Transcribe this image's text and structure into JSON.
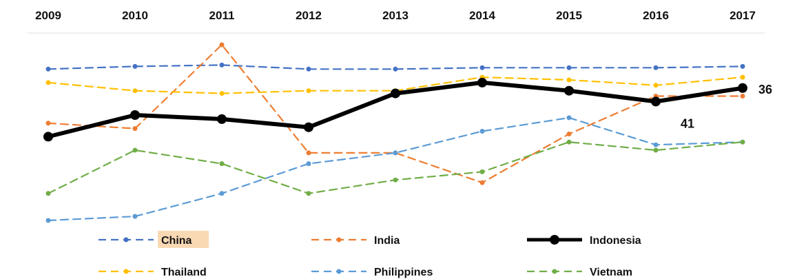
{
  "chart_data": {
    "type": "line",
    "title": "",
    "xlabel": "",
    "ylabel": "",
    "x": [
      "2009",
      "2010",
      "2011",
      "2012",
      "2013",
      "2014",
      "2015",
      "2016",
      "2017"
    ],
    "y_axis": "inverted, unlabeled (lower value plotted higher)",
    "ylim": [
      85,
      20
    ],
    "grid": false,
    "legend": "bottom",
    "series": [
      {
        "name": "China",
        "color": "#4472C4",
        "style": "dashed",
        "values": [
          29,
          28,
          27.5,
          29,
          29,
          28.5,
          28.5,
          28.5,
          28
        ]
      },
      {
        "name": "India",
        "color": "#ED7D31",
        "style": "dashed",
        "values": [
          49,
          51,
          20,
          60,
          60,
          71,
          53,
          39,
          39
        ]
      },
      {
        "name": "Indonesia",
        "color": "#000000",
        "style": "solid",
        "values": [
          54,
          46,
          47.5,
          50.5,
          38,
          34,
          37,
          41,
          36
        ]
      },
      {
        "name": "Thailand",
        "color": "#FFC000",
        "style": "dashed",
        "values": [
          34,
          37,
          38,
          37,
          37,
          32,
          33,
          35,
          32
        ]
      },
      {
        "name": "Philippines",
        "color": "#5B9BD5",
        "style": "dashed",
        "values": [
          85,
          83.5,
          75,
          64,
          60,
          52,
          47,
          57,
          56
        ]
      },
      {
        "name": "Vietnam",
        "color": "#70AD47",
        "style": "dashed",
        "values": [
          75,
          59,
          64,
          75,
          70,
          67,
          56,
          59,
          56
        ]
      }
    ],
    "data_labels": [
      {
        "series": "Indonesia",
        "x": "2016",
        "text": "41"
      },
      {
        "series": "Indonesia",
        "x": "2017",
        "text": "36"
      }
    ],
    "highlighted_legend_entry": "China",
    "highlight_color": "#F8D9B4"
  }
}
